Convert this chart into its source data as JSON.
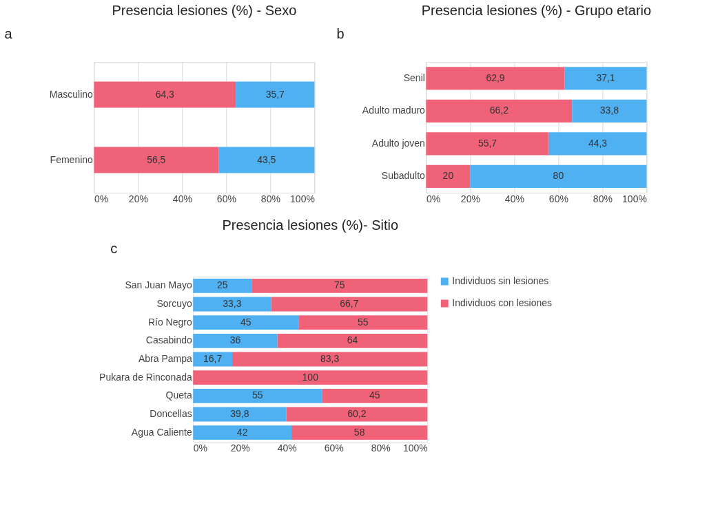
{
  "chart_data": [
    {
      "type": "bar",
      "orientation": "horizontal",
      "stacked": true,
      "title": "Presencia lesiones (%) - Sexo",
      "annotations": [
        "a"
      ],
      "categories": [
        "Masculino",
        "Femenino"
      ],
      "series": [
        {
          "color": "#f06277",
          "values": [
            64.3,
            56.5
          ],
          "value_labels": [
            "64,3",
            "56,5"
          ]
        },
        {
          "color": "#4fb0f2",
          "values": [
            35.7,
            43.5
          ],
          "value_labels": [
            "35,7",
            "43,5"
          ]
        }
      ],
      "xlim": [
        0,
        100
      ],
      "xticks": [
        {
          "value": 0,
          "label": "0%"
        },
        {
          "value": 20,
          "label": "20%"
        },
        {
          "value": 40,
          "label": "40%"
        },
        {
          "value": 60,
          "label": "60%"
        },
        {
          "value": 80,
          "label": "80%"
        },
        {
          "value": 100,
          "label": "100%"
        }
      ],
      "grid": "x"
    },
    {
      "type": "bar",
      "orientation": "horizontal",
      "stacked": true,
      "title": "Presencia lesiones (%) - Grupo etario",
      "annotations": [
        "b"
      ],
      "categories": [
        "Senil",
        "Adulto maduro",
        "Adulto joven",
        "Subadulto"
      ],
      "series": [
        {
          "color": "#f06277",
          "values": [
            62.9,
            66.2,
            55.7,
            20
          ],
          "value_labels": [
            "62,9",
            "66,2",
            "55,7",
            "20"
          ]
        },
        {
          "color": "#4fb0f2",
          "values": [
            37.1,
            33.8,
            44.3,
            80
          ],
          "value_labels": [
            "37,1",
            "33,8",
            "44,3",
            "80"
          ]
        }
      ],
      "xlim": [
        0,
        100
      ],
      "xticks": [
        {
          "value": 0,
          "label": "0%"
        },
        {
          "value": 20,
          "label": "20%"
        },
        {
          "value": 40,
          "label": "40%"
        },
        {
          "value": 60,
          "label": "60%"
        },
        {
          "value": 80,
          "label": "80%"
        },
        {
          "value": 100,
          "label": "100%"
        }
      ],
      "grid": "x"
    },
    {
      "type": "bar",
      "orientation": "horizontal",
      "stacked": true,
      "title": "Presencia lesiones (%)- Sitio",
      "annotations": [
        "c"
      ],
      "categories": [
        "San Juan Mayo",
        "Sorcuyo",
        "Río Negro",
        "Casabindo",
        "Abra Pampa",
        "Pukara de Rinconada",
        "Queta",
        "Doncellas",
        "Agua Caliente"
      ],
      "series": [
        {
          "name": "Individuos sin lesiones",
          "color": "#4fb0f2",
          "values": [
            25,
            33.3,
            45,
            36,
            16.7,
            0,
            55,
            39.8,
            42
          ],
          "value_labels": [
            "25",
            "33,3",
            "45",
            "36",
            "16,7",
            null,
            "55",
            "39,8",
            "42"
          ]
        },
        {
          "name": "Individuos con lesiones",
          "color": "#f06277",
          "values": [
            75,
            66.7,
            55,
            64,
            83.3,
            100,
            45,
            60.2,
            58
          ],
          "value_labels": [
            "75",
            "66,7",
            "55",
            "64",
            "83,3",
            "100",
            "45",
            "60,2",
            "58"
          ]
        }
      ],
      "xlim": [
        0,
        100
      ],
      "xticks": [
        {
          "value": 0,
          "label": "0%"
        },
        {
          "value": 20,
          "label": "20%"
        },
        {
          "value": 40,
          "label": "40%"
        },
        {
          "value": 60,
          "label": "60%"
        },
        {
          "value": 80,
          "label": "80%"
        },
        {
          "value": 100,
          "label": "100%"
        }
      ],
      "legend": "right"
    }
  ]
}
